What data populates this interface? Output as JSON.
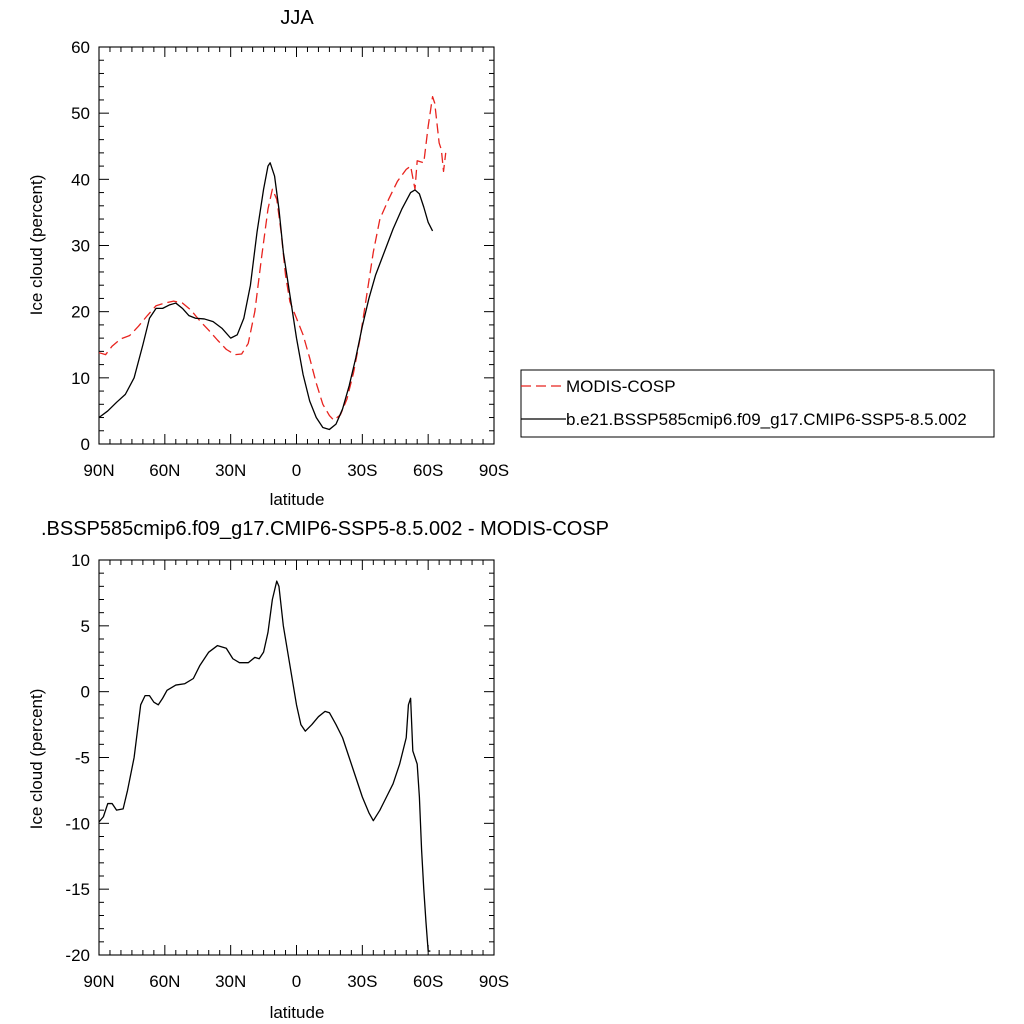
{
  "chart_data": [
    {
      "type": "line",
      "title": "JJA",
      "xlabel": "latitude",
      "ylabel": "Ice cloud (percent)",
      "xlim": [
        -90,
        90
      ],
      "ylim": [
        0,
        60
      ],
      "x_direction": "north-to-south",
      "xticks": [
        {
          "value": -90,
          "label": "90N"
        },
        {
          "value": -60,
          "label": "60N"
        },
        {
          "value": -30,
          "label": "30N"
        },
        {
          "value": 0,
          "label": "0"
        },
        {
          "value": 30,
          "label": "30S"
        },
        {
          "value": 60,
          "label": "60S"
        },
        {
          "value": 90,
          "label": "90S"
        }
      ],
      "yticks": [
        {
          "value": 0,
          "label": "0"
        },
        {
          "value": 10,
          "label": "10"
        },
        {
          "value": 20,
          "label": "20"
        },
        {
          "value": 30,
          "label": "30"
        },
        {
          "value": 40,
          "label": "40"
        },
        {
          "value": 50,
          "label": "50"
        },
        {
          "value": 60,
          "label": "60"
        }
      ],
      "grid": false,
      "legend_position": "right",
      "series": [
        {
          "name": "MODIS-COSP",
          "color": "#e8231e",
          "dash": "dashed",
          "points": [
            [
              -90,
              13.8
            ],
            [
              -87,
              13.5
            ],
            [
              -84,
              14.8
            ],
            [
              -80,
              15.9
            ],
            [
              -76,
              16.4
            ],
            [
              -72,
              17.8
            ],
            [
              -68,
              19.4
            ],
            [
              -64,
              20.9
            ],
            [
              -60,
              21.3
            ],
            [
              -56,
              21.6
            ],
            [
              -52,
              21.3
            ],
            [
              -48,
              20.2
            ],
            [
              -44,
              18.6
            ],
            [
              -40,
              17.2
            ],
            [
              -36,
              15.7
            ],
            [
              -32,
              14.3
            ],
            [
              -28,
              13.5
            ],
            [
              -25,
              13.6
            ],
            [
              -22,
              15.2
            ],
            [
              -19,
              20.0
            ],
            [
              -16,
              28.0
            ],
            [
              -13,
              35.5
            ],
            [
              -11,
              38.5
            ],
            [
              -9,
              37.0
            ],
            [
              -7,
              32.0
            ],
            [
              -5,
              25.5
            ],
            [
              -3,
              21.5
            ],
            [
              0,
              19.0
            ],
            [
              3,
              16.5
            ],
            [
              6,
              13.0
            ],
            [
              9,
              9.2
            ],
            [
              12,
              6.0
            ],
            [
              15,
              4.3
            ],
            [
              17,
              3.6
            ],
            [
              20,
              4.4
            ],
            [
              23,
              6.8
            ],
            [
              26,
              10.8
            ],
            [
              29,
              16.0
            ],
            [
              32,
              22.5
            ],
            [
              35,
              29.0
            ],
            [
              38,
              34.0
            ],
            [
              42,
              37.0
            ],
            [
              46,
              39.7
            ],
            [
              50,
              41.5
            ],
            [
              52,
              42.0
            ],
            [
              54,
              38.5
            ],
            [
              55,
              42.8
            ],
            [
              58,
              42.5
            ],
            [
              60,
              48.0
            ],
            [
              62,
              52.5
            ],
            [
              63,
              51.5
            ],
            [
              65,
              45.5
            ],
            [
              66,
              44.5
            ],
            [
              67,
              41.2
            ],
            [
              68,
              44.0
            ]
          ]
        },
        {
          "name": "b.e21.BSSP585cmip6.f09_g17.CMIP6-SSP5-8.5.002",
          "color": "#000000",
          "dash": "solid",
          "points": [
            [
              -90,
              4.0
            ],
            [
              -86,
              5.0
            ],
            [
              -82,
              6.3
            ],
            [
              -78,
              7.5
            ],
            [
              -74,
              10.0
            ],
            [
              -70,
              15.0
            ],
            [
              -67,
              19.0
            ],
            [
              -64,
              20.5
            ],
            [
              -61,
              20.5
            ],
            [
              -58,
              21.0
            ],
            [
              -55,
              21.3
            ],
            [
              -52,
              20.5
            ],
            [
              -49,
              19.4
            ],
            [
              -46,
              19.0
            ],
            [
              -42,
              18.9
            ],
            [
              -38,
              18.5
            ],
            [
              -34,
              17.5
            ],
            [
              -30,
              16.0
            ],
            [
              -27,
              16.5
            ],
            [
              -24,
              19.0
            ],
            [
              -21,
              24.0
            ],
            [
              -18,
              32.0
            ],
            [
              -15,
              38.5
            ],
            [
              -13,
              42.0
            ],
            [
              -12,
              42.5
            ],
            [
              -10,
              40.5
            ],
            [
              -8,
              35.5
            ],
            [
              -6,
              29.0
            ],
            [
              -3,
              22.5
            ],
            [
              0,
              16.0
            ],
            [
              3,
              10.5
            ],
            [
              6,
              6.5
            ],
            [
              9,
              4.0
            ],
            [
              12,
              2.5
            ],
            [
              15,
              2.2
            ],
            [
              18,
              3.0
            ],
            [
              21,
              5.3
            ],
            [
              24,
              8.8
            ],
            [
              27,
              13.0
            ],
            [
              30,
              17.8
            ],
            [
              33,
              22.0
            ],
            [
              36,
              25.5
            ],
            [
              40,
              29.0
            ],
            [
              44,
              32.5
            ],
            [
              48,
              35.5
            ],
            [
              52,
              38.0
            ],
            [
              54,
              38.4
            ],
            [
              56,
              37.8
            ],
            [
              58,
              35.8
            ],
            [
              60,
              33.5
            ],
            [
              62,
              32.2
            ]
          ]
        }
      ]
    },
    {
      "type": "line",
      "title": ".BSSP585cmip6.f09_g17.CMIP6-SSP5-8.5.002 - MODIS-COSP",
      "xlabel": "latitude",
      "ylabel": "Ice cloud (percent)",
      "xlim": [
        -90,
        90
      ],
      "ylim": [
        -20,
        10
      ],
      "x_direction": "north-to-south",
      "xticks": [
        {
          "value": -90,
          "label": "90N"
        },
        {
          "value": -60,
          "label": "60N"
        },
        {
          "value": -30,
          "label": "30N"
        },
        {
          "value": 0,
          "label": "0"
        },
        {
          "value": 30,
          "label": "30S"
        },
        {
          "value": 60,
          "label": "60S"
        },
        {
          "value": 90,
          "label": "90S"
        }
      ],
      "yticks": [
        {
          "value": -20,
          "label": "-20"
        },
        {
          "value": -15,
          "label": "-15"
        },
        {
          "value": -10,
          "label": "-10"
        },
        {
          "value": -5,
          "label": "-5"
        },
        {
          "value": 0,
          "label": "0"
        },
        {
          "value": 5,
          "label": "5"
        },
        {
          "value": 10,
          "label": "10"
        }
      ],
      "grid": false,
      "series": [
        {
          "color": "#000000",
          "dash": "solid",
          "points": [
            [
              -90,
              -9.9
            ],
            [
              -88,
              -9.5
            ],
            [
              -86,
              -8.5
            ],
            [
              -84,
              -8.5
            ],
            [
              -82,
              -9.0
            ],
            [
              -79,
              -8.9
            ],
            [
              -77,
              -7.5
            ],
            [
              -74,
              -5.0
            ],
            [
              -71,
              -1.0
            ],
            [
              -69,
              -0.3
            ],
            [
              -67,
              -0.3
            ],
            [
              -65,
              -0.8
            ],
            [
              -63,
              -1.0
            ],
            [
              -61,
              -0.5
            ],
            [
              -59,
              0.1
            ],
            [
              -55,
              0.5
            ],
            [
              -51,
              0.6
            ],
            [
              -47,
              1.0
            ],
            [
              -44,
              2.0
            ],
            [
              -40,
              3.0
            ],
            [
              -36,
              3.5
            ],
            [
              -32,
              3.3
            ],
            [
              -29,
              2.5
            ],
            [
              -26,
              2.2
            ],
            [
              -22,
              2.2
            ],
            [
              -19,
              2.6
            ],
            [
              -17,
              2.5
            ],
            [
              -15,
              3.0
            ],
            [
              -13,
              4.5
            ],
            [
              -11,
              7.0
            ],
            [
              -9,
              8.4
            ],
            [
              -8,
              8.0
            ],
            [
              -6,
              5.0
            ],
            [
              -4,
              3.0
            ],
            [
              -2,
              1.0
            ],
            [
              0,
              -1.0
            ],
            [
              2,
              -2.5
            ],
            [
              4,
              -3.0
            ],
            [
              7,
              -2.5
            ],
            [
              10,
              -1.9
            ],
            [
              13,
              -1.5
            ],
            [
              15,
              -1.6
            ],
            [
              18,
              -2.5
            ],
            [
              21,
              -3.5
            ],
            [
              24,
              -5.0
            ],
            [
              27,
              -6.5
            ],
            [
              30,
              -8.0
            ],
            [
              33,
              -9.2
            ],
            [
              35,
              -9.8
            ],
            [
              38,
              -9.0
            ],
            [
              41,
              -8.0
            ],
            [
              44,
              -7.0
            ],
            [
              47,
              -5.5
            ],
            [
              50,
              -3.5
            ],
            [
              51,
              -1.0
            ],
            [
              52,
              -0.5
            ],
            [
              53,
              -4.5
            ],
            [
              54,
              -5.0
            ],
            [
              55,
              -5.5
            ],
            [
              56,
              -8.0
            ],
            [
              57,
              -12.0
            ],
            [
              58,
              -15.0
            ],
            [
              59,
              -17.5
            ],
            [
              60,
              -19.7
            ],
            [
              61,
              -19.7
            ]
          ]
        }
      ]
    }
  ]
}
